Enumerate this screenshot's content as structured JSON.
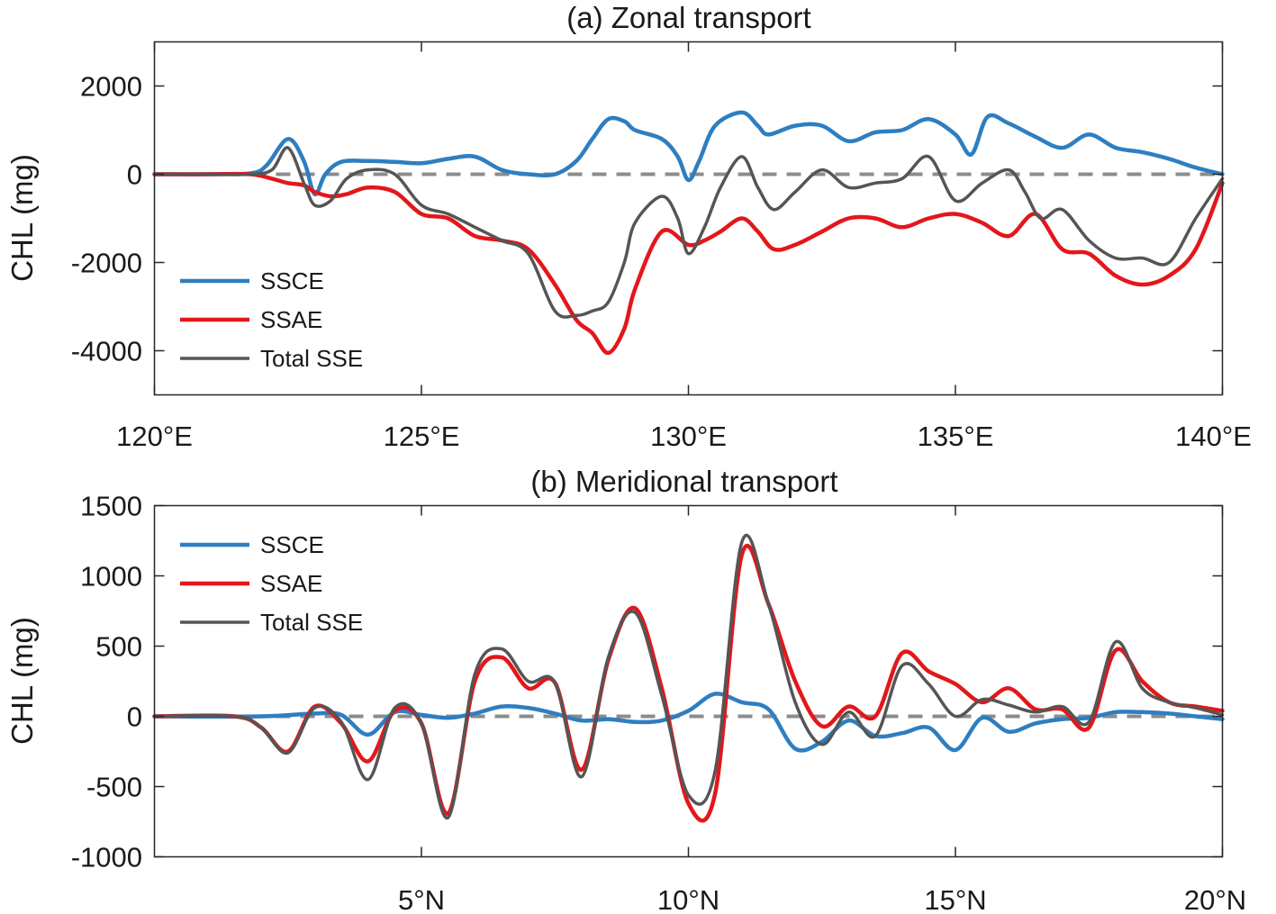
{
  "chart_data": [
    {
      "type": "line",
      "title": "(a) Zonal transport",
      "xlabel": "",
      "ylabel": "CHL (mg)",
      "xlim": [
        120,
        140
      ],
      "ylim": [
        -5000,
        3000
      ],
      "xticks": [
        120,
        125,
        130,
        135,
        140
      ],
      "xtick_labels": [
        "120°E",
        "125°E",
        "130°E",
        "135°E",
        "140°E"
      ],
      "yticks": [
        2000,
        0,
        -2000,
        -4000
      ],
      "ytick_labels": [
        "2000",
        "0",
        "-2000",
        "-4000"
      ],
      "zero_line": "dashed gray",
      "legend_position": "lower-left",
      "series": [
        {
          "name": "SSCE",
          "color": "#2e7ec1",
          "x": [
            120,
            121,
            121.8,
            122.1,
            122.5,
            122.8,
            123,
            123.2,
            123.5,
            124,
            124.5,
            125,
            125.5,
            126,
            126.5,
            127,
            127.5,
            127.9,
            128.2,
            128.5,
            128.8,
            129,
            129.5,
            129.8,
            130,
            130.2,
            130.5,
            131,
            131.3,
            131.5,
            132,
            132.5,
            133,
            133.5,
            134,
            134.5,
            135,
            135.3,
            135.6,
            136,
            136.5,
            137,
            137.5,
            138,
            138.5,
            139,
            139.5,
            140
          ],
          "y": [
            0,
            0,
            20,
            200,
            800,
            300,
            -450,
            0,
            280,
            300,
            280,
            250,
            350,
            400,
            100,
            0,
            0,
            300,
            800,
            1250,
            1200,
            1000,
            800,
            400,
            -130,
            300,
            1100,
            1400,
            1100,
            900,
            1100,
            1100,
            750,
            950,
            1000,
            1250,
            900,
            450,
            1300,
            1150,
            850,
            600,
            900,
            600,
            500,
            350,
            150,
            0
          ]
        },
        {
          "name": "SSAE",
          "color": "#e3171b",
          "x": [
            120,
            121,
            121.8,
            122.2,
            122.5,
            122.8,
            123,
            123.3,
            123.6,
            124,
            124.5,
            125,
            125.5,
            126,
            126.5,
            127,
            127.5,
            127.9,
            128.2,
            128.5,
            128.8,
            129,
            129.5,
            130,
            130.3,
            130.6,
            131,
            131.3,
            131.6,
            132,
            132.5,
            133,
            133.5,
            134,
            134.5,
            135,
            135.5,
            136,
            136.5,
            137,
            137.5,
            138,
            138.5,
            139,
            139.5,
            140
          ],
          "y": [
            0,
            0,
            0,
            -100,
            -200,
            -250,
            -400,
            -500,
            -450,
            -300,
            -400,
            -900,
            -1000,
            -1400,
            -1500,
            -1700,
            -2500,
            -3300,
            -3600,
            -4050,
            -3500,
            -2600,
            -1300,
            -1600,
            -1500,
            -1300,
            -1000,
            -1300,
            -1700,
            -1600,
            -1300,
            -1000,
            -1000,
            -1200,
            -1000,
            -900,
            -1100,
            -1400,
            -900,
            -1700,
            -1800,
            -2300,
            -2500,
            -2300,
            -1700,
            -200
          ]
        },
        {
          "name": "Total SSE",
          "color": "#555555",
          "x": [
            120,
            121,
            121.8,
            122.2,
            122.5,
            122.8,
            123,
            123.3,
            123.6,
            124,
            124.5,
            125,
            125.5,
            126,
            126.5,
            127,
            127.5,
            127.9,
            128.2,
            128.5,
            128.8,
            129,
            129.5,
            129.8,
            130,
            130.3,
            130.6,
            131,
            131.3,
            131.6,
            132,
            132.5,
            133,
            133.5,
            134,
            134.5,
            135,
            135.5,
            136,
            136.3,
            136.6,
            137,
            137.5,
            138,
            138.5,
            139,
            139.5,
            140
          ],
          "y": [
            0,
            0,
            0,
            100,
            600,
            -200,
            -700,
            -600,
            -100,
            100,
            0,
            -700,
            -900,
            -1200,
            -1500,
            -1800,
            -3100,
            -3200,
            -3100,
            -2900,
            -2000,
            -1100,
            -500,
            -1000,
            -1800,
            -1200,
            -300,
            400,
            -300,
            -800,
            -400,
            100,
            -300,
            -200,
            -100,
            400,
            -600,
            -200,
            100,
            -400,
            -1000,
            -800,
            -1500,
            -1900,
            -1900,
            -2000,
            -1000,
            -100
          ]
        }
      ]
    },
    {
      "type": "line",
      "title": "(b) Meridional transport",
      "xlabel": "",
      "ylabel": "CHL (mg)",
      "xlim": [
        0,
        20
      ],
      "ylim": [
        -1000,
        1500
      ],
      "xticks": [
        5,
        10,
        15,
        20
      ],
      "xtick_labels": [
        "5°N",
        "10°N",
        "15°N",
        "20°N"
      ],
      "yticks": [
        1500,
        1000,
        500,
        0,
        -500,
        -1000
      ],
      "ytick_labels": [
        "1500",
        "1000",
        "500",
        "0",
        "-500",
        "-1000"
      ],
      "zero_line": "dashed gray",
      "legend_position": "top-left",
      "series": [
        {
          "name": "SSCE",
          "color": "#2e7ec1",
          "x": [
            0,
            2,
            3,
            3.5,
            4,
            4.5,
            5,
            5.5,
            6,
            6.5,
            7,
            7.5,
            8,
            8.5,
            9,
            9.5,
            10,
            10.5,
            11,
            11.5,
            12,
            12.5,
            13,
            13.5,
            14,
            14.5,
            15,
            15.5,
            16,
            16.5,
            17,
            17.5,
            18,
            18.5,
            19,
            19.5,
            20
          ],
          "y": [
            0,
            0,
            20,
            10,
            -130,
            30,
            10,
            -10,
            20,
            70,
            60,
            20,
            -30,
            -20,
            -40,
            -30,
            40,
            160,
            100,
            50,
            -230,
            -180,
            -30,
            -140,
            -120,
            -80,
            -240,
            -10,
            -110,
            -50,
            -20,
            -10,
            30,
            30,
            20,
            0,
            -20
          ]
        },
        {
          "name": "SSAE",
          "color": "#e3171b",
          "x": [
            0,
            1.5,
            2,
            2.5,
            3,
            3.5,
            4,
            4.5,
            5,
            5.5,
            6,
            6.5,
            7,
            7.5,
            8,
            8.5,
            9,
            9.5,
            10,
            10.5,
            11,
            11.5,
            12,
            12.5,
            13,
            13.5,
            14,
            14.5,
            15,
            15.5,
            16,
            16.5,
            17,
            17.5,
            18,
            18.5,
            19,
            19.5,
            20
          ],
          "y": [
            0,
            0,
            -80,
            -250,
            70,
            -50,
            -320,
            40,
            -50,
            -690,
            250,
            420,
            200,
            240,
            -380,
            400,
            770,
            200,
            -620,
            -550,
            1150,
            800,
            250,
            -70,
            70,
            0,
            450,
            320,
            230,
            100,
            200,
            50,
            50,
            -80,
            470,
            250,
            100,
            70,
            40
          ]
        },
        {
          "name": "Total SSE",
          "color": "#555555",
          "x": [
            0,
            1.5,
            2,
            2.5,
            3,
            3.5,
            4,
            4.5,
            5,
            5.5,
            6,
            6.5,
            7,
            7.5,
            8,
            8.5,
            9,
            9.5,
            10,
            10.5,
            11,
            11.5,
            12,
            12.5,
            13,
            13.5,
            14,
            14.5,
            15,
            15.5,
            16,
            16.5,
            17,
            17.5,
            18,
            18.5,
            19,
            19.5,
            20
          ],
          "y": [
            0,
            0,
            -80,
            -260,
            60,
            -40,
            -450,
            60,
            -50,
            -720,
            300,
            480,
            250,
            240,
            -430,
            420,
            740,
            150,
            -560,
            -390,
            1240,
            800,
            100,
            -200,
            30,
            -140,
            360,
            230,
            0,
            120,
            80,
            30,
            70,
            -40,
            530,
            200,
            100,
            60,
            10
          ]
        }
      ]
    }
  ]
}
